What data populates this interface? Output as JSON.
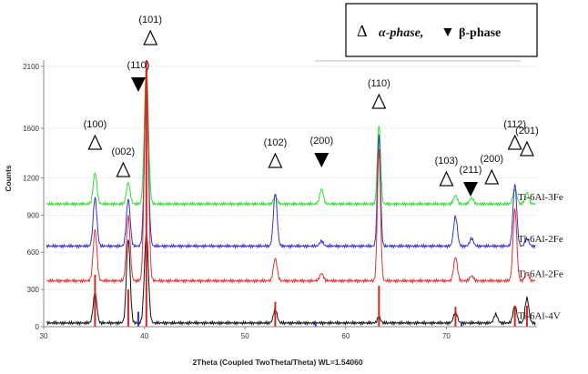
{
  "chart_data": {
    "type": "line",
    "title": "",
    "xlabel": "2Theta (Coupled TwoTheta/Theta) WL=1.54060",
    "ylabel": "Counts",
    "xlim": [
      30,
      79
    ],
    "ylim": [
      0,
      2150
    ],
    "x_ticks": [
      30,
      40,
      50,
      60,
      70
    ],
    "y_ticks": [
      0,
      300,
      600,
      900,
      1200,
      1600,
      2100
    ],
    "series": [
      {
        "name": "Ti-6Al-3Fe",
        "color": "#33dd33",
        "baseline": 990,
        "peaks": [
          [
            35.1,
            250
          ],
          [
            38.4,
            170
          ],
          [
            40.2,
            1110
          ],
          [
            53.0,
            60
          ],
          [
            57.6,
            120
          ],
          [
            63.3,
            640
          ],
          [
            70.9,
            70
          ],
          [
            72.5,
            50
          ],
          [
            76.8,
            120
          ],
          [
            78.0,
            90
          ]
        ]
      },
      {
        "name": "Ti-6Al-2Fe",
        "color": "#3333cc",
        "baseline": 650,
        "peaks": [
          [
            35.1,
            390
          ],
          [
            38.4,
            380
          ],
          [
            40.2,
            1280
          ],
          [
            53.0,
            430
          ],
          [
            57.6,
            40
          ],
          [
            63.3,
            890
          ],
          [
            70.9,
            240
          ],
          [
            72.5,
            60
          ],
          [
            76.8,
            500
          ],
          [
            78.0,
            60
          ]
        ]
      },
      {
        "name": "Ti-6Al-2Fe",
        "color": "#e03333",
        "baseline": 370,
        "peaks": [
          [
            35.1,
            410
          ],
          [
            38.4,
            520
          ],
          [
            40.2,
            1700
          ],
          [
            53.0,
            180
          ],
          [
            57.6,
            60
          ],
          [
            63.3,
            1060
          ],
          [
            70.9,
            190
          ],
          [
            72.5,
            40
          ],
          [
            76.8,
            580
          ],
          [
            78.0,
            70
          ]
        ]
      },
      {
        "name": "Ti-6Al-4V",
        "color": "#111111",
        "baseline": 30,
        "peaks": [
          [
            35.1,
            240
          ],
          [
            38.4,
            680
          ],
          [
            40.2,
            730
          ],
          [
            53.0,
            110
          ],
          [
            63.3,
            50
          ],
          [
            70.9,
            90
          ],
          [
            74.9,
            70
          ],
          [
            76.8,
            140
          ],
          [
            78.0,
            200
          ]
        ]
      }
    ],
    "reference_lines": {
      "alpha_color": "#dd2222",
      "beta_color": "#3333cc",
      "alpha": [
        [
          35.1,
          420
        ],
        [
          38.4,
          300
        ],
        [
          40.2,
          2150
        ],
        [
          53.0,
          200
        ],
        [
          63.3,
          330
        ],
        [
          70.9,
          160
        ],
        [
          76.8,
          170
        ],
        [
          78.0,
          170
        ]
      ],
      "beta": [
        [
          39.4,
          120
        ],
        [
          57.0,
          30
        ],
        [
          71.5,
          30
        ]
      ]
    },
    "peak_labels": [
      {
        "text": "(100)",
        "symbol": "alpha",
        "x": 35.1
      },
      {
        "text": "(002)",
        "symbol": "alpha",
        "x": 37.9
      },
      {
        "text": "(110)",
        "symbol": "beta",
        "x": 39.4
      },
      {
        "text": "(101)",
        "symbol": "alpha",
        "x": 40.6
      },
      {
        "text": "(102)",
        "symbol": "alpha",
        "x": 53.0
      },
      {
        "text": "(200)",
        "symbol": "beta",
        "x": 57.6
      },
      {
        "text": "(110)",
        "symbol": "alpha",
        "x": 63.3
      },
      {
        "text": "(103)",
        "symbol": "alpha",
        "x": 70.0
      },
      {
        "text": "(211)",
        "symbol": "beta",
        "x": 72.4
      },
      {
        "text": "(200)",
        "symbol": "alpha",
        "x": 74.5
      },
      {
        "text": "(112)",
        "symbol": "alpha",
        "x": 76.8
      },
      {
        "text": "(201)",
        "symbol": "alpha",
        "x": 78.0
      }
    ],
    "legend": {
      "position": "top-right",
      "alpha_symbol": "Δ",
      "alpha_label": "α-phase,",
      "beta_symbol": "▼",
      "beta_label": "β-phase"
    }
  }
}
